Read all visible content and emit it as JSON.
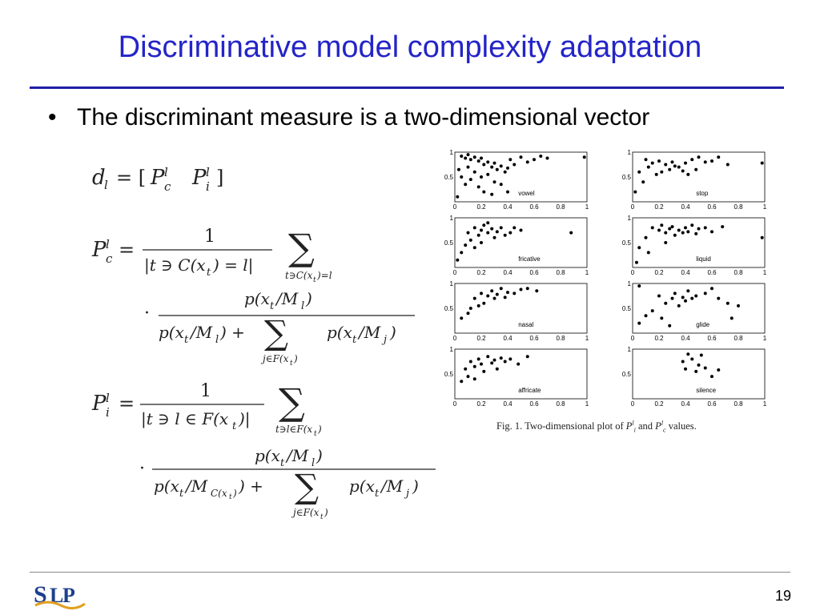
{
  "slide": {
    "title": "Discriminative model complexity adaptation",
    "bullet": "The discriminant measure is a two-dimensional vector",
    "page_number": "19",
    "logo_text": "SLP"
  },
  "figure": {
    "caption": "Fig. 1.   Two-dimensional plot of",
    "caption_pil": "P",
    "caption_mid": " and ",
    "caption_pcl": "P",
    "caption_end": " values."
  },
  "colors": {
    "title": "#2424c8",
    "rule": "#1f1fa8"
  },
  "chart_data": {
    "type": "scatter",
    "title": "",
    "xlim": [
      0,
      1
    ],
    "ylim": [
      0,
      1
    ],
    "xticks": [
      "0",
      "0.2",
      "0.4",
      "0.6",
      "0.8",
      "1"
    ],
    "yticks": [
      "0.5",
      "1"
    ],
    "panels": [
      {
        "label": "vowel",
        "points": [
          [
            0.05,
            0.92
          ],
          [
            0.08,
            0.88
          ],
          [
            0.1,
            0.95
          ],
          [
            0.12,
            0.85
          ],
          [
            0.15,
            0.9
          ],
          [
            0.18,
            0.82
          ],
          [
            0.2,
            0.88
          ],
          [
            0.22,
            0.75
          ],
          [
            0.25,
            0.8
          ],
          [
            0.28,
            0.7
          ],
          [
            0.3,
            0.78
          ],
          [
            0.32,
            0.65
          ],
          [
            0.35,
            0.72
          ],
          [
            0.38,
            0.6
          ],
          [
            0.4,
            0.68
          ],
          [
            0.1,
            0.7
          ],
          [
            0.15,
            0.6
          ],
          [
            0.2,
            0.5
          ],
          [
            0.12,
            0.45
          ],
          [
            0.25,
            0.55
          ],
          [
            0.3,
            0.4
          ],
          [
            0.35,
            0.35
          ],
          [
            0.08,
            0.35
          ],
          [
            0.18,
            0.3
          ],
          [
            0.42,
            0.85
          ],
          [
            0.45,
            0.75
          ],
          [
            0.5,
            0.9
          ],
          [
            0.55,
            0.8
          ],
          [
            0.6,
            0.85
          ],
          [
            0.22,
            0.2
          ],
          [
            0.28,
            0.15
          ],
          [
            0.05,
            0.5
          ],
          [
            0.03,
            0.65
          ],
          [
            0.02,
            0.1
          ],
          [
            0.4,
            0.2
          ],
          [
            0.65,
            0.92
          ],
          [
            0.7,
            0.88
          ],
          [
            0.98,
            0.9
          ]
        ]
      },
      {
        "label": "stop",
        "points": [
          [
            0.1,
            0.85
          ],
          [
            0.15,
            0.78
          ],
          [
            0.2,
            0.82
          ],
          [
            0.25,
            0.75
          ],
          [
            0.3,
            0.8
          ],
          [
            0.35,
            0.7
          ],
          [
            0.4,
            0.78
          ],
          [
            0.28,
            0.65
          ],
          [
            0.22,
            0.6
          ],
          [
            0.32,
            0.72
          ],
          [
            0.38,
            0.62
          ],
          [
            0.45,
            0.85
          ],
          [
            0.5,
            0.9
          ],
          [
            0.55,
            0.8
          ],
          [
            0.6,
            0.82
          ],
          [
            0.18,
            0.55
          ],
          [
            0.12,
            0.7
          ],
          [
            0.05,
            0.6
          ],
          [
            0.02,
            0.2
          ],
          [
            0.08,
            0.4
          ],
          [
            0.42,
            0.55
          ],
          [
            0.48,
            0.65
          ],
          [
            0.65,
            0.9
          ],
          [
            0.72,
            0.75
          ],
          [
            0.98,
            0.78
          ]
        ]
      },
      {
        "label": "fricative",
        "points": [
          [
            0.1,
            0.7
          ],
          [
            0.15,
            0.8
          ],
          [
            0.18,
            0.65
          ],
          [
            0.2,
            0.75
          ],
          [
            0.22,
            0.85
          ],
          [
            0.25,
            0.7
          ],
          [
            0.28,
            0.78
          ],
          [
            0.3,
            0.6
          ],
          [
            0.32,
            0.72
          ],
          [
            0.35,
            0.8
          ],
          [
            0.38,
            0.65
          ],
          [
            0.12,
            0.55
          ],
          [
            0.08,
            0.45
          ],
          [
            0.15,
            0.4
          ],
          [
            0.05,
            0.3
          ],
          [
            0.02,
            0.15
          ],
          [
            0.2,
            0.5
          ],
          [
            0.42,
            0.7
          ],
          [
            0.45,
            0.8
          ],
          [
            0.5,
            0.75
          ],
          [
            0.25,
            0.9
          ],
          [
            0.88,
            0.7
          ]
        ]
      },
      {
        "label": "liquid",
        "points": [
          [
            0.15,
            0.8
          ],
          [
            0.2,
            0.75
          ],
          [
            0.22,
            0.85
          ],
          [
            0.25,
            0.7
          ],
          [
            0.28,
            0.78
          ],
          [
            0.3,
            0.82
          ],
          [
            0.32,
            0.65
          ],
          [
            0.35,
            0.75
          ],
          [
            0.38,
            0.7
          ],
          [
            0.4,
            0.8
          ],
          [
            0.42,
            0.72
          ],
          [
            0.45,
            0.85
          ],
          [
            0.48,
            0.68
          ],
          [
            0.5,
            0.78
          ],
          [
            0.55,
            0.8
          ],
          [
            0.6,
            0.72
          ],
          [
            0.1,
            0.6
          ],
          [
            0.05,
            0.4
          ],
          [
            0.03,
            0.1
          ],
          [
            0.12,
            0.3
          ],
          [
            0.25,
            0.5
          ],
          [
            0.68,
            0.82
          ],
          [
            0.98,
            0.6
          ]
        ]
      },
      {
        "label": "nasal",
        "points": [
          [
            0.15,
            0.7
          ],
          [
            0.2,
            0.8
          ],
          [
            0.22,
            0.6
          ],
          [
            0.25,
            0.75
          ],
          [
            0.28,
            0.85
          ],
          [
            0.3,
            0.7
          ],
          [
            0.32,
            0.78
          ],
          [
            0.35,
            0.9
          ],
          [
            0.38,
            0.72
          ],
          [
            0.4,
            0.82
          ],
          [
            0.18,
            0.55
          ],
          [
            0.12,
            0.5
          ],
          [
            0.1,
            0.4
          ],
          [
            0.05,
            0.3
          ],
          [
            0.45,
            0.8
          ],
          [
            0.5,
            0.88
          ],
          [
            0.55,
            0.9
          ],
          [
            0.62,
            0.85
          ]
        ]
      },
      {
        "label": "glide",
        "points": [
          [
            0.2,
            0.75
          ],
          [
            0.25,
            0.6
          ],
          [
            0.3,
            0.7
          ],
          [
            0.32,
            0.8
          ],
          [
            0.35,
            0.55
          ],
          [
            0.38,
            0.72
          ],
          [
            0.4,
            0.65
          ],
          [
            0.42,
            0.85
          ],
          [
            0.45,
            0.7
          ],
          [
            0.48,
            0.75
          ],
          [
            0.15,
            0.45
          ],
          [
            0.1,
            0.35
          ],
          [
            0.05,
            0.2
          ],
          [
            0.22,
            0.3
          ],
          [
            0.28,
            0.15
          ],
          [
            0.55,
            0.8
          ],
          [
            0.6,
            0.9
          ],
          [
            0.65,
            0.7
          ],
          [
            0.72,
            0.6
          ],
          [
            0.75,
            0.3
          ],
          [
            0.8,
            0.55
          ],
          [
            0.05,
            0.95
          ]
        ]
      },
      {
        "label": "affricate",
        "points": [
          [
            0.08,
            0.6
          ],
          [
            0.12,
            0.75
          ],
          [
            0.15,
            0.65
          ],
          [
            0.18,
            0.8
          ],
          [
            0.2,
            0.7
          ],
          [
            0.22,
            0.55
          ],
          [
            0.25,
            0.85
          ],
          [
            0.28,
            0.72
          ],
          [
            0.3,
            0.78
          ],
          [
            0.32,
            0.6
          ],
          [
            0.35,
            0.82
          ],
          [
            0.38,
            0.75
          ],
          [
            0.1,
            0.45
          ],
          [
            0.05,
            0.35
          ],
          [
            0.15,
            0.4
          ],
          [
            0.42,
            0.8
          ],
          [
            0.48,
            0.7
          ],
          [
            0.55,
            0.85
          ]
        ]
      },
      {
        "label": "silence",
        "points": [
          [
            0.38,
            0.75
          ],
          [
            0.4,
            0.6
          ],
          [
            0.42,
            0.9
          ],
          [
            0.45,
            0.8
          ],
          [
            0.48,
            0.55
          ],
          [
            0.5,
            0.68
          ],
          [
            0.52,
            0.88
          ],
          [
            0.55,
            0.62
          ],
          [
            0.6,
            0.45
          ],
          [
            0.65,
            0.58
          ]
        ]
      }
    ]
  }
}
